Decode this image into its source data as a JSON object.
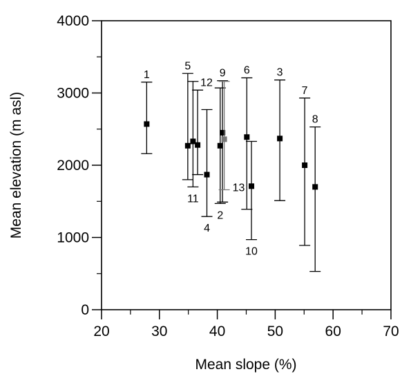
{
  "chart_data": {
    "type": "scatter",
    "title": "",
    "xlabel": "Mean slope (%)",
    "ylabel": "Mean elevation (m asl)",
    "xlim": [
      20,
      70
    ],
    "ylim": [
      0,
      4000
    ],
    "x_ticks": [
      "20",
      "30",
      "40",
      "50",
      "60",
      "70"
    ],
    "y_ticks": [
      "0",
      "1000",
      "2000",
      "3000",
      "4000"
    ],
    "grid": false,
    "marker_color": "#000000",
    "highlight_color": "#777777",
    "points": [
      {
        "label": "1",
        "x": 27.8,
        "y": 2570,
        "ymin": 2160,
        "ymax": 3150
      },
      {
        "label": "2",
        "x": 40.5,
        "y": 2270,
        "ymin": 1470,
        "ymax": 3070
      },
      {
        "label": "3",
        "x": 50.8,
        "y": 2370,
        "ymin": 1510,
        "ymax": 3180
      },
      {
        "label": "4",
        "x": 38.2,
        "y": 1870,
        "ymin": 1290,
        "ymax": 2770
      },
      {
        "label": "5",
        "x": 34.9,
        "y": 2270,
        "ymin": 1800,
        "ymax": 3270
      },
      {
        "label": "6",
        "x": 45.1,
        "y": 2390,
        "ymin": 1390,
        "ymax": 3210
      },
      {
        "label": "7",
        "x": 55.1,
        "y": 2000,
        "ymin": 890,
        "ymax": 2930
      },
      {
        "label": "8",
        "x": 56.9,
        "y": 1700,
        "ymin": 530,
        "ymax": 2530
      },
      {
        "label": "9",
        "x": 40.9,
        "y": 2450,
        "ymin": 1490,
        "ymax": 3170
      },
      {
        "label": "10",
        "x": 45.9,
        "y": 1710,
        "ymin": 970,
        "ymax": 2330
      },
      {
        "label": "11",
        "x": 35.8,
        "y": 2330,
        "ymin": 1700,
        "ymax": 3160
      },
      {
        "label": "12",
        "x": 36.6,
        "y": 2280,
        "ymin": 1870,
        "ymax": 3040
      },
      {
        "label": "13",
        "x": 41.2,
        "y": 2360,
        "ymin": 1660,
        "ymax": 3160,
        "muted": true
      }
    ]
  }
}
